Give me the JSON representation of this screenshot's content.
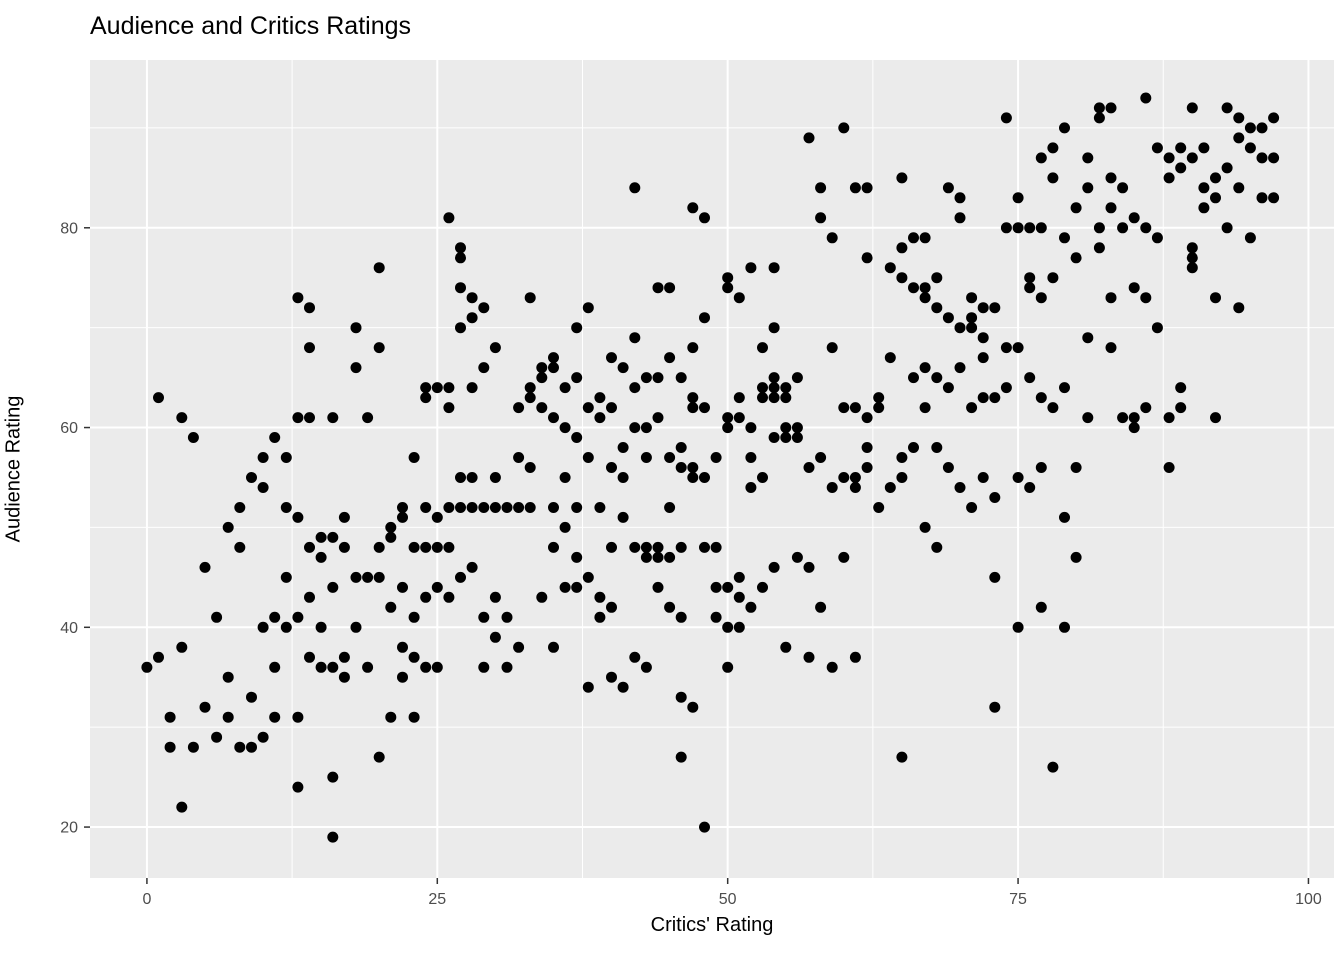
{
  "title": "Audience and Critics Ratings",
  "chart_data": {
    "type": "scatter",
    "title": "Audience and Critics Ratings",
    "xlabel": "Critics' Rating",
    "ylabel": "Audience Rating",
    "xlim": [
      -4.9,
      102.2
    ],
    "ylim": [
      14.9,
      96.8
    ],
    "x_ticks": [
      0,
      25,
      50,
      75,
      100
    ],
    "y_ticks": [
      20,
      40,
      60,
      80
    ],
    "x_minor_ticks": [
      12.5,
      37.5,
      62.5,
      87.5
    ],
    "y_minor_ticks": [
      30,
      50,
      70,
      90
    ],
    "grid": true,
    "legend": false,
    "panel_bg": "#EBEBEB",
    "grid_color": "#FFFFFF",
    "tick_color": "#333333",
    "tick_label_color": "#4D4D4D",
    "point_color": "#000000",
    "point_radius": 5.5,
    "points": [
      [
        0,
        36
      ],
      [
        1,
        37
      ],
      [
        1,
        63
      ],
      [
        2,
        28
      ],
      [
        2,
        31
      ],
      [
        3,
        22
      ],
      [
        3,
        38
      ],
      [
        3,
        61
      ],
      [
        4,
        28
      ],
      [
        4,
        59
      ],
      [
        5,
        32
      ],
      [
        5,
        46
      ],
      [
        6,
        29
      ],
      [
        6,
        41
      ],
      [
        7,
        31
      ],
      [
        7,
        35
      ],
      [
        7,
        50
      ],
      [
        8,
        28
      ],
      [
        8,
        48
      ],
      [
        8,
        52
      ],
      [
        9,
        28
      ],
      [
        9,
        33
      ],
      [
        9,
        55
      ],
      [
        10,
        29
      ],
      [
        10,
        40
      ],
      [
        10,
        54
      ],
      [
        10,
        57
      ],
      [
        11,
        31
      ],
      [
        11,
        36
      ],
      [
        11,
        41
      ],
      [
        11,
        59
      ],
      [
        12,
        40
      ],
      [
        12,
        45
      ],
      [
        12,
        52
      ],
      [
        12,
        57
      ],
      [
        13,
        24
      ],
      [
        13,
        31
      ],
      [
        13,
        41
      ],
      [
        13,
        51
      ],
      [
        13,
        61
      ],
      [
        13,
        73
      ],
      [
        14,
        37
      ],
      [
        14,
        43
      ],
      [
        14,
        48
      ],
      [
        14,
        61
      ],
      [
        14,
        68
      ],
      [
        14,
        72
      ],
      [
        15,
        36
      ],
      [
        15,
        40
      ],
      [
        15,
        47
      ],
      [
        15,
        49
      ],
      [
        16,
        19
      ],
      [
        16,
        25
      ],
      [
        16,
        36
      ],
      [
        16,
        44
      ],
      [
        16,
        49
      ],
      [
        16,
        61
      ],
      [
        17,
        35
      ],
      [
        17,
        37
      ],
      [
        17,
        48
      ],
      [
        17,
        51
      ],
      [
        18,
        40
      ],
      [
        18,
        45
      ],
      [
        18,
        66
      ],
      [
        18,
        70
      ],
      [
        19,
        36
      ],
      [
        19,
        45
      ],
      [
        19,
        61
      ],
      [
        20,
        27
      ],
      [
        20,
        45
      ],
      [
        20,
        48
      ],
      [
        20,
        68
      ],
      [
        20,
        76
      ],
      [
        21,
        31
      ],
      [
        21,
        42
      ],
      [
        21,
        49
      ],
      [
        21,
        50
      ],
      [
        22,
        35
      ],
      [
        22,
        38
      ],
      [
        22,
        44
      ],
      [
        22,
        51
      ],
      [
        22,
        52
      ],
      [
        23,
        31
      ],
      [
        23,
        37
      ],
      [
        23,
        41
      ],
      [
        23,
        48
      ],
      [
        23,
        57
      ],
      [
        24,
        36
      ],
      [
        24,
        43
      ],
      [
        24,
        48
      ],
      [
        24,
        52
      ],
      [
        24,
        63
      ],
      [
        24,
        64
      ],
      [
        25,
        36
      ],
      [
        25,
        44
      ],
      [
        25,
        48
      ],
      [
        25,
        51
      ],
      [
        25,
        64
      ],
      [
        26,
        43
      ],
      [
        26,
        48
      ],
      [
        26,
        52
      ],
      [
        26,
        62
      ],
      [
        26,
        64
      ],
      [
        26,
        81
      ],
      [
        27,
        45
      ],
      [
        27,
        52
      ],
      [
        27,
        55
      ],
      [
        27,
        70
      ],
      [
        27,
        74
      ],
      [
        27,
        77
      ],
      [
        27,
        78
      ],
      [
        28,
        46
      ],
      [
        28,
        52
      ],
      [
        28,
        55
      ],
      [
        28,
        64
      ],
      [
        28,
        71
      ],
      [
        28,
        73
      ],
      [
        29,
        36
      ],
      [
        29,
        41
      ],
      [
        29,
        52
      ],
      [
        29,
        66
      ],
      [
        29,
        72
      ],
      [
        30,
        39
      ],
      [
        30,
        43
      ],
      [
        30,
        52
      ],
      [
        30,
        55
      ],
      [
        30,
        68
      ],
      [
        31,
        36
      ],
      [
        31,
        41
      ],
      [
        31,
        52
      ],
      [
        32,
        38
      ],
      [
        32,
        52
      ],
      [
        32,
        57
      ],
      [
        32,
        62
      ],
      [
        33,
        52
      ],
      [
        33,
        56
      ],
      [
        33,
        63
      ],
      [
        33,
        64
      ],
      [
        33,
        73
      ],
      [
        34,
        43
      ],
      [
        34,
        62
      ],
      [
        34,
        65
      ],
      [
        34,
        66
      ],
      [
        35,
        38
      ],
      [
        35,
        48
      ],
      [
        35,
        52
      ],
      [
        35,
        61
      ],
      [
        35,
        66
      ],
      [
        35,
        67
      ],
      [
        36,
        44
      ],
      [
        36,
        50
      ],
      [
        36,
        55
      ],
      [
        36,
        60
      ],
      [
        36,
        64
      ],
      [
        37,
        44
      ],
      [
        37,
        47
      ],
      [
        37,
        52
      ],
      [
        37,
        59
      ],
      [
        37,
        65
      ],
      [
        37,
        70
      ],
      [
        38,
        34
      ],
      [
        38,
        45
      ],
      [
        38,
        57
      ],
      [
        38,
        62
      ],
      [
        38,
        72
      ],
      [
        39,
        41
      ],
      [
        39,
        43
      ],
      [
        39,
        52
      ],
      [
        39,
        61
      ],
      [
        39,
        63
      ],
      [
        40,
        35
      ],
      [
        40,
        42
      ],
      [
        40,
        48
      ],
      [
        40,
        56
      ],
      [
        40,
        62
      ],
      [
        40,
        67
      ],
      [
        41,
        34
      ],
      [
        41,
        51
      ],
      [
        41,
        55
      ],
      [
        41,
        58
      ],
      [
        41,
        66
      ],
      [
        42,
        37
      ],
      [
        42,
        48
      ],
      [
        42,
        60
      ],
      [
        42,
        64
      ],
      [
        42,
        69
      ],
      [
        42,
        84
      ],
      [
        43,
        36
      ],
      [
        43,
        47
      ],
      [
        43,
        48
      ],
      [
        43,
        57
      ],
      [
        43,
        60
      ],
      [
        43,
        65
      ],
      [
        44,
        44
      ],
      [
        44,
        47
      ],
      [
        44,
        48
      ],
      [
        44,
        61
      ],
      [
        44,
        65
      ],
      [
        44,
        74
      ],
      [
        45,
        42
      ],
      [
        45,
        47
      ],
      [
        45,
        52
      ],
      [
        45,
        57
      ],
      [
        45,
        67
      ],
      [
        45,
        74
      ],
      [
        46,
        27
      ],
      [
        46,
        33
      ],
      [
        46,
        41
      ],
      [
        46,
        48
      ],
      [
        46,
        56
      ],
      [
        46,
        58
      ],
      [
        46,
        65
      ],
      [
        47,
        32
      ],
      [
        47,
        55
      ],
      [
        47,
        56
      ],
      [
        47,
        62
      ],
      [
        47,
        63
      ],
      [
        47,
        68
      ],
      [
        47,
        82
      ],
      [
        48,
        20
      ],
      [
        48,
        48
      ],
      [
        48,
        55
      ],
      [
        48,
        62
      ],
      [
        48,
        71
      ],
      [
        48,
        81
      ],
      [
        49,
        41
      ],
      [
        49,
        44
      ],
      [
        49,
        48
      ],
      [
        49,
        57
      ],
      [
        50,
        36
      ],
      [
        50,
        40
      ],
      [
        50,
        44
      ],
      [
        50,
        60
      ],
      [
        50,
        61
      ],
      [
        50,
        74
      ],
      [
        50,
        75
      ],
      [
        51,
        40
      ],
      [
        51,
        43
      ],
      [
        51,
        45
      ],
      [
        51,
        61
      ],
      [
        51,
        63
      ],
      [
        51,
        73
      ],
      [
        52,
        42
      ],
      [
        52,
        54
      ],
      [
        52,
        57
      ],
      [
        52,
        60
      ],
      [
        52,
        76
      ],
      [
        53,
        44
      ],
      [
        53,
        55
      ],
      [
        53,
        63
      ],
      [
        53,
        64
      ],
      [
        53,
        68
      ],
      [
        54,
        46
      ],
      [
        54,
        59
      ],
      [
        54,
        63
      ],
      [
        54,
        64
      ],
      [
        54,
        65
      ],
      [
        54,
        70
      ],
      [
        54,
        76
      ],
      [
        55,
        38
      ],
      [
        55,
        59
      ],
      [
        55,
        60
      ],
      [
        55,
        63
      ],
      [
        55,
        64
      ],
      [
        56,
        47
      ],
      [
        56,
        59
      ],
      [
        56,
        60
      ],
      [
        56,
        65
      ],
      [
        57,
        37
      ],
      [
        57,
        46
      ],
      [
        57,
        56
      ],
      [
        57,
        89
      ],
      [
        58,
        42
      ],
      [
        58,
        57
      ],
      [
        58,
        81
      ],
      [
        58,
        84
      ],
      [
        59,
        36
      ],
      [
        59,
        54
      ],
      [
        59,
        68
      ],
      [
        59,
        79
      ],
      [
        60,
        47
      ],
      [
        60,
        55
      ],
      [
        60,
        62
      ],
      [
        60,
        90
      ],
      [
        61,
        37
      ],
      [
        61,
        54
      ],
      [
        61,
        55
      ],
      [
        61,
        62
      ],
      [
        61,
        84
      ],
      [
        62,
        56
      ],
      [
        62,
        58
      ],
      [
        62,
        61
      ],
      [
        62,
        77
      ],
      [
        62,
        84
      ],
      [
        63,
        52
      ],
      [
        63,
        62
      ],
      [
        63,
        63
      ],
      [
        64,
        54
      ],
      [
        64,
        67
      ],
      [
        64,
        76
      ],
      [
        65,
        27
      ],
      [
        65,
        55
      ],
      [
        65,
        57
      ],
      [
        65,
        75
      ],
      [
        65,
        78
      ],
      [
        65,
        85
      ],
      [
        66,
        58
      ],
      [
        66,
        65
      ],
      [
        66,
        74
      ],
      [
        66,
        79
      ],
      [
        67,
        50
      ],
      [
        67,
        62
      ],
      [
        67,
        66
      ],
      [
        67,
        73
      ],
      [
        67,
        74
      ],
      [
        67,
        79
      ],
      [
        68,
        48
      ],
      [
        68,
        58
      ],
      [
        68,
        65
      ],
      [
        68,
        72
      ],
      [
        68,
        75
      ],
      [
        69,
        56
      ],
      [
        69,
        64
      ],
      [
        69,
        71
      ],
      [
        69,
        84
      ],
      [
        70,
        54
      ],
      [
        70,
        66
      ],
      [
        70,
        70
      ],
      [
        70,
        81
      ],
      [
        70,
        83
      ],
      [
        71,
        52
      ],
      [
        71,
        62
      ],
      [
        71,
        70
      ],
      [
        71,
        71
      ],
      [
        71,
        73
      ],
      [
        72,
        55
      ],
      [
        72,
        63
      ],
      [
        72,
        67
      ],
      [
        72,
        69
      ],
      [
        72,
        72
      ],
      [
        73,
        32
      ],
      [
        73,
        45
      ],
      [
        73,
        53
      ],
      [
        73,
        63
      ],
      [
        73,
        72
      ],
      [
        74,
        64
      ],
      [
        74,
        68
      ],
      [
        74,
        80
      ],
      [
        74,
        91
      ],
      [
        75,
        40
      ],
      [
        75,
        55
      ],
      [
        75,
        68
      ],
      [
        75,
        80
      ],
      [
        75,
        83
      ],
      [
        76,
        54
      ],
      [
        76,
        65
      ],
      [
        76,
        74
      ],
      [
        76,
        75
      ],
      [
        76,
        80
      ],
      [
        77,
        42
      ],
      [
        77,
        56
      ],
      [
        77,
        63
      ],
      [
        77,
        73
      ],
      [
        77,
        80
      ],
      [
        77,
        87
      ],
      [
        78,
        26
      ],
      [
        78,
        62
      ],
      [
        78,
        75
      ],
      [
        78,
        85
      ],
      [
        78,
        88
      ],
      [
        79,
        40
      ],
      [
        79,
        51
      ],
      [
        79,
        64
      ],
      [
        79,
        79
      ],
      [
        79,
        90
      ],
      [
        80,
        47
      ],
      [
        80,
        56
      ],
      [
        80,
        77
      ],
      [
        80,
        82
      ],
      [
        81,
        61
      ],
      [
        81,
        69
      ],
      [
        81,
        84
      ],
      [
        81,
        87
      ],
      [
        82,
        78
      ],
      [
        82,
        80
      ],
      [
        82,
        91
      ],
      [
        82,
        92
      ],
      [
        83,
        68
      ],
      [
        83,
        73
      ],
      [
        83,
        82
      ],
      [
        83,
        85
      ],
      [
        83,
        92
      ],
      [
        84,
        61
      ],
      [
        84,
        80
      ],
      [
        84,
        84
      ],
      [
        85,
        60
      ],
      [
        85,
        61
      ],
      [
        85,
        74
      ],
      [
        85,
        81
      ],
      [
        86,
        62
      ],
      [
        86,
        73
      ],
      [
        86,
        80
      ],
      [
        86,
        93
      ],
      [
        87,
        70
      ],
      [
        87,
        79
      ],
      [
        87,
        88
      ],
      [
        88,
        56
      ],
      [
        88,
        61
      ],
      [
        88,
        85
      ],
      [
        88,
        87
      ],
      [
        89,
        62
      ],
      [
        89,
        64
      ],
      [
        89,
        86
      ],
      [
        89,
        88
      ],
      [
        90,
        76
      ],
      [
        90,
        77
      ],
      [
        90,
        78
      ],
      [
        90,
        87
      ],
      [
        90,
        92
      ],
      [
        91,
        82
      ],
      [
        91,
        84
      ],
      [
        91,
        88
      ],
      [
        92,
        61
      ],
      [
        92,
        73
      ],
      [
        92,
        83
      ],
      [
        92,
        85
      ],
      [
        93,
        80
      ],
      [
        93,
        86
      ],
      [
        93,
        92
      ],
      [
        94,
        72
      ],
      [
        94,
        84
      ],
      [
        94,
        89
      ],
      [
        94,
        91
      ],
      [
        95,
        79
      ],
      [
        95,
        88
      ],
      [
        95,
        90
      ],
      [
        96,
        83
      ],
      [
        96,
        87
      ],
      [
        96,
        90
      ],
      [
        97,
        83
      ],
      [
        97,
        87
      ],
      [
        97,
        91
      ]
    ]
  }
}
